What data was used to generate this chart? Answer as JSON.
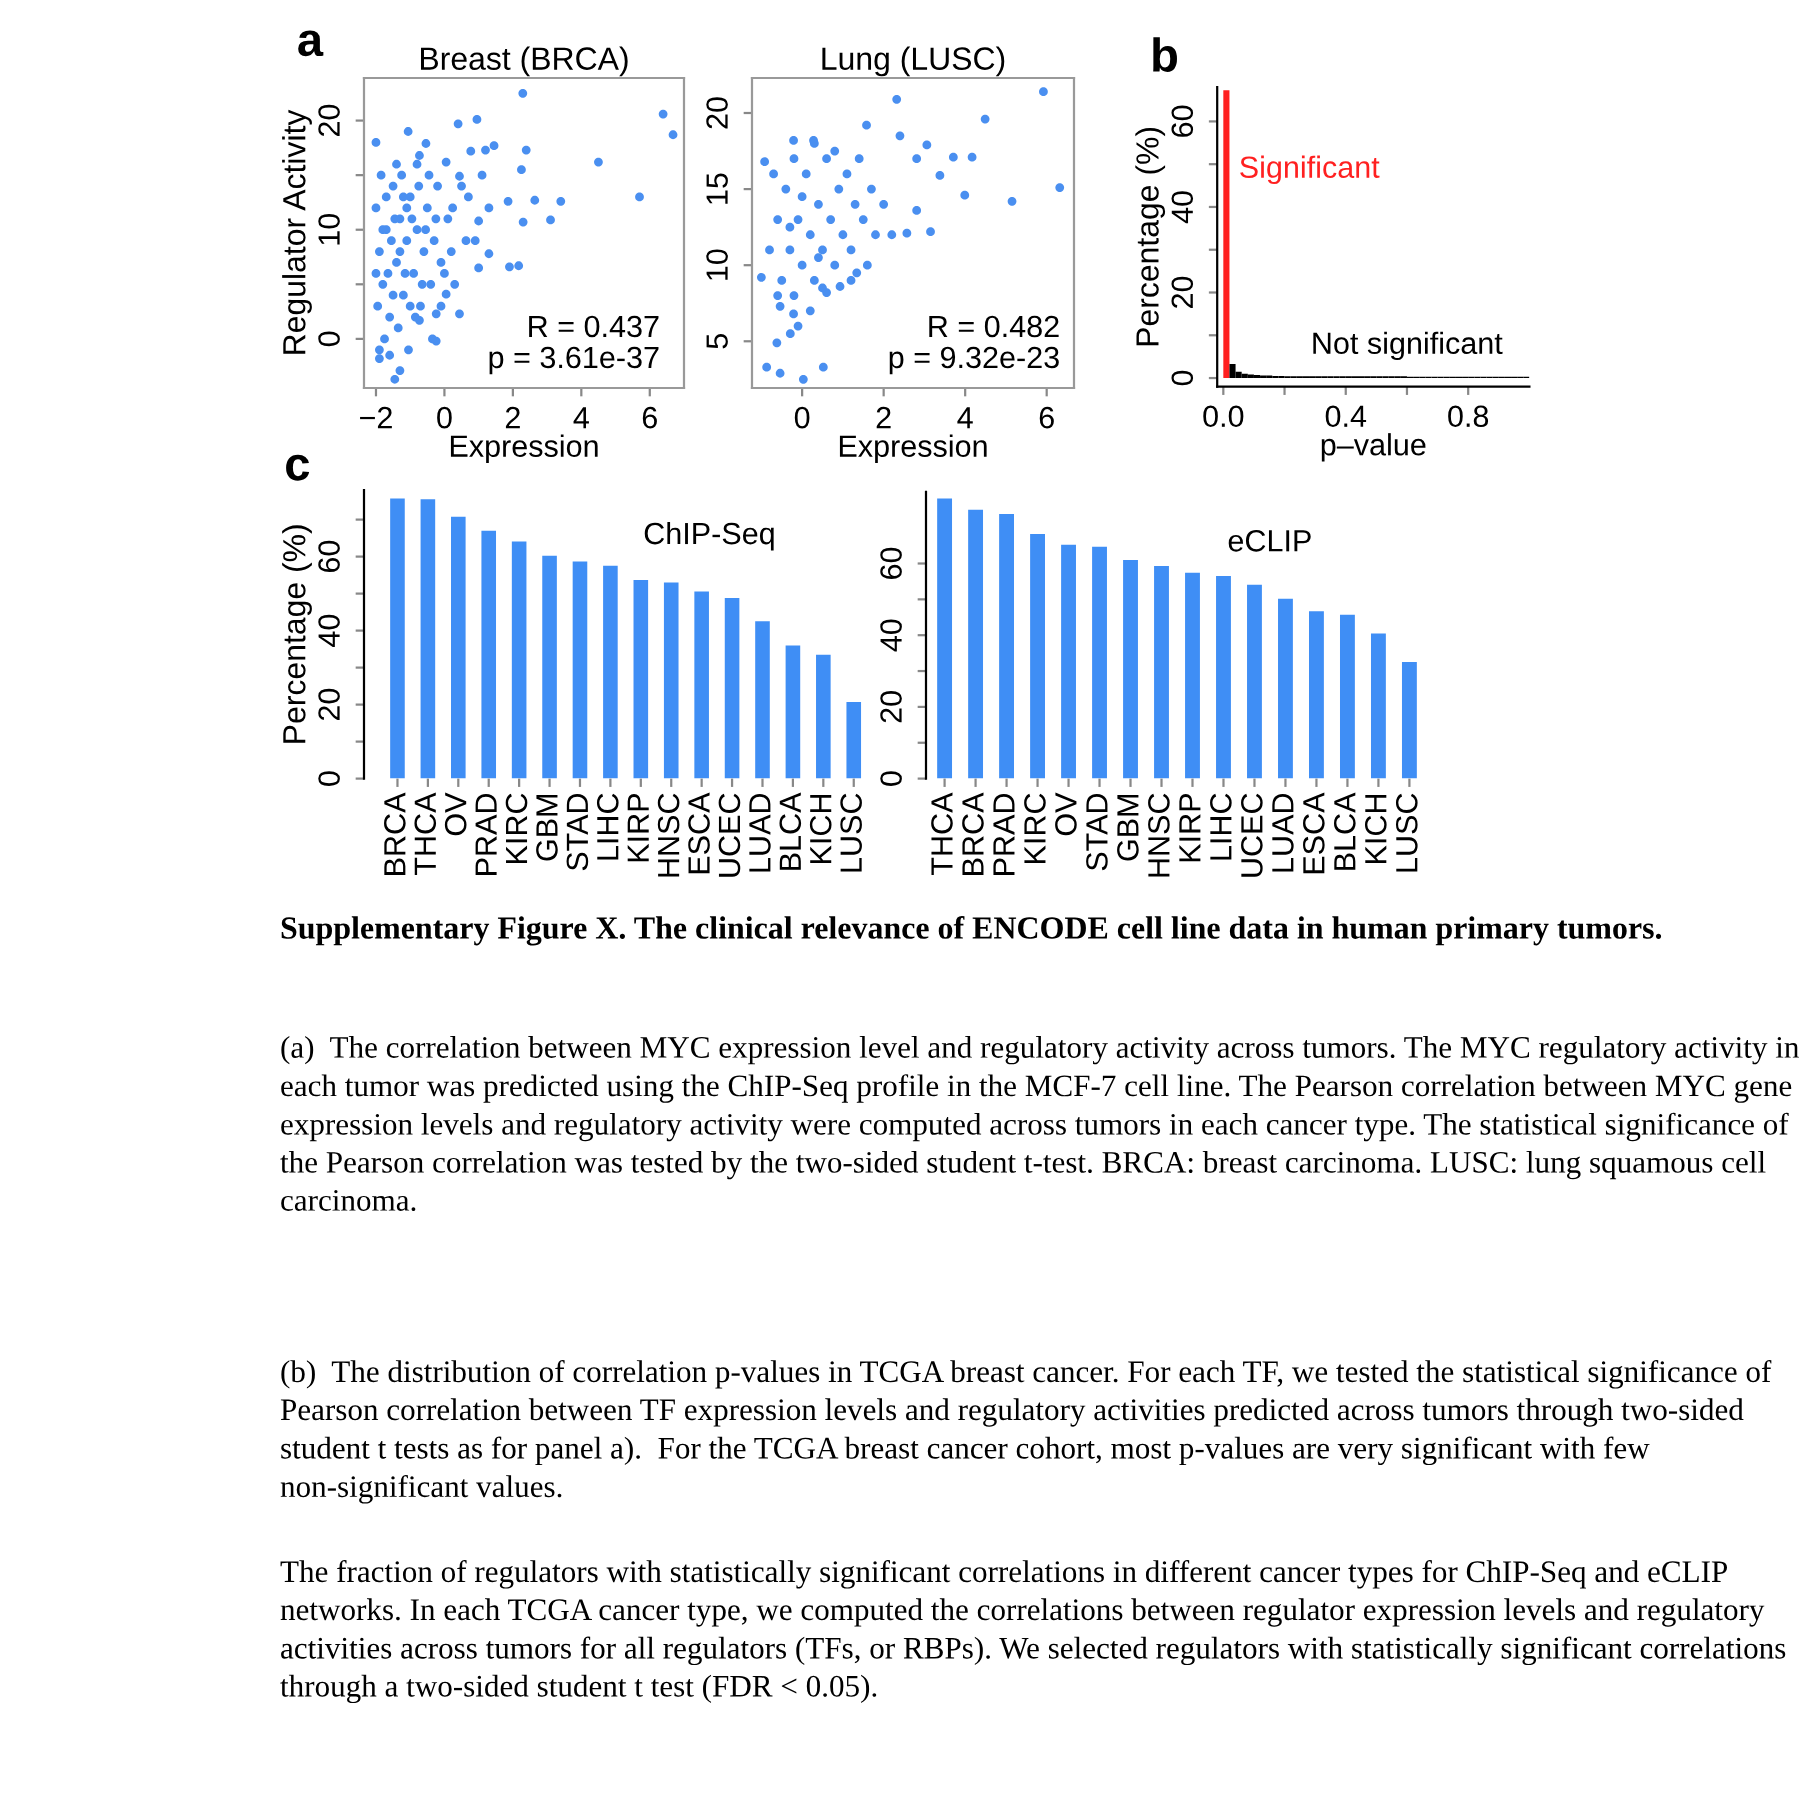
{
  "chart_data": [
    {
      "type": "scatter",
      "title": "Breast (BRCA)",
      "xlabel": "Expression",
      "ylabel": "Regulator Activity",
      "annotations": [
        "a",
        "R = 0.437",
        "p = 3.61e-37"
      ],
      "color": "#4a8ff0",
      "marker": "circle",
      "grid": false,
      "x": [
        2.29,
        6.39,
        6.68,
        4.5,
        5.7,
        0.4,
        0.95,
        -1.06,
        -2,
        2.39,
        2.25,
        2.64,
        3.4,
        3.1,
        2.3,
        1.9,
        2.17,
        1.0,
        -0.24,
        -1.45,
        -1.3,
        -1.9,
        1.86,
        1.45,
        1.2,
        0.77,
        0.44,
        0.05,
        -0.54,
        -0.73,
        0.24,
        1.0,
        0.63,
        -0.24,
        -0.73,
        0.44,
        0.05,
        1.3,
        -2,
        -1.9,
        -1.8,
        -1.7,
        -1.6,
        -1.5,
        -1.4,
        -1.3,
        -1.2,
        -1.1,
        -1.0,
        -0.9,
        -0.8,
        -0.7,
        -0.6,
        -0.5,
        -0.4,
        -0.3,
        -0.2,
        -0.1,
        -1.95,
        -1.85,
        -1.75,
        -1.65,
        -1.55,
        -1.45,
        -1.35,
        -1.25,
        -1.15,
        -1.05,
        -0.95,
        -0.85,
        -0.75,
        -0.65,
        -0.55,
        -0.45,
        -0.35,
        -0.25,
        -1.9,
        -1.6,
        -1.7,
        -1.5,
        -1.2,
        -1.0,
        -0.8,
        -1.4,
        -2,
        -1.8,
        -1.3,
        -1.1,
        0.1,
        0.2,
        0.5,
        0.7,
        0.9,
        1.1,
        1.3,
        0.0,
        -0.1,
        0.3
      ],
      "values": [
        22.5,
        20.6,
        18.7,
        16.2,
        13.0,
        19.7,
        20.1,
        19.0,
        18.0,
        17.3,
        15.5,
        12.7,
        12.6,
        10.9,
        10.7,
        6.6,
        6.7,
        6.5,
        -0.2,
        -3.7,
        -2.9,
        -1.8,
        12.6,
        17.7,
        17.3,
        17.2,
        14.9,
        16.2,
        17.9,
        16.8,
        12.0,
        10.8,
        9.0,
        2.3,
        1.7,
        2.3,
        4.1,
        7.8,
        12,
        8,
        5,
        10,
        2,
        14,
        7,
        11,
        4,
        9,
        13,
        6,
        10,
        3,
        8,
        12,
        5,
        9,
        14,
        7,
        3,
        15,
        0,
        6,
        9,
        11,
        1,
        15,
        6,
        -1,
        11,
        2,
        14,
        5,
        10,
        15,
        0,
        11,
        -1,
        -1.5,
        13,
        4,
        13,
        3,
        16,
        16,
        6,
        10,
        8,
        12,
        11,
        8,
        14,
        13,
        9,
        15,
        12,
        6,
        3,
        5
      ],
      "xlim": [
        -2.35,
        7.0
      ],
      "ylim": [
        -4.5,
        23.9
      ],
      "xticks": [
        {
          "value": -2,
          "label": "−2"
        },
        0,
        2,
        4,
        6
      ],
      "yticks": [
        0,
        {
          "value": 5,
          "label": null
        },
        10,
        {
          "value": 15,
          "label": null
        },
        20
      ]
    },
    {
      "type": "scatter",
      "title": "Lung (LUSC)",
      "xlabel": "Expression",
      "annotations": [
        "R = 0.482",
        "p = 9.32e-23"
      ],
      "color": "#4a8ff0",
      "marker": "circle",
      "grid": false,
      "x": [
        5.92,
        2.32,
        4.49,
        6.32,
        5.15,
        3.99,
        4.17,
        3.71,
        3.06,
        2.4,
        2.81,
        3.38,
        3.15,
        2.57,
        2.81,
        -0.21,
        0.28,
        1.58,
        -0.92,
        -1.0,
        -0.87,
        -0.54,
        0.03,
        0.52,
        -0.29,
        -0.62,
        -0.21,
        -0.54,
        1.34,
        0.6,
        0.93,
        -0.8,
        -0.6,
        -0.5,
        -0.4,
        -0.3,
        -0.2,
        -0.1,
        0.0,
        0.1,
        0.2,
        0.3,
        0.4,
        0.5,
        0.6,
        0.7,
        0.8,
        0.9,
        1.0,
        1.1,
        1.2,
        1.3,
        1.4,
        1.5,
        1.7,
        1.8,
        2.0,
        -0.7,
        -0.2,
        0.3,
        0.8,
        -0.6,
        -0.1,
        0.2,
        0.5,
        1.6,
        2.2,
        0.0,
        -0.3,
        0.4,
        1.2
      ],
      "values": [
        21.4,
        20.9,
        19.6,
        15.1,
        14.2,
        14.6,
        17.1,
        17.1,
        17.9,
        18.5,
        17.0,
        15.9,
        12.2,
        12.1,
        13.6,
        18.2,
        18.2,
        19.2,
        16.8,
        9.2,
        3.3,
        2.9,
        2.5,
        3.3,
        5.5,
        4.9,
        6.8,
        7.3,
        9.5,
        8.2,
        8.6,
        11,
        13,
        9,
        15,
        11,
        8,
        13,
        10,
        16,
        12,
        9,
        14,
        11,
        17,
        13,
        10,
        15,
        12,
        16,
        11,
        14,
        17,
        13,
        15,
        12,
        14,
        16,
        17,
        18,
        17.5,
        8,
        6,
        7,
        8.5,
        10,
        12,
        14.5,
        12.5,
        10.5,
        9
      ],
      "xlim": [
        -1.23,
        6.67
      ],
      "ylim": [
        1.93,
        22.3
      ],
      "xticks": [
        0,
        2,
        4,
        6
      ],
      "yticks": [
        5,
        10,
        15,
        20
      ]
    },
    {
      "type": "histogram",
      "xlabel": "p–value",
      "ylabel": "Percentage (%)",
      "annotations": [
        "b"
      ],
      "grid": false,
      "bins": [
        0,
        0.02,
        0.04,
        0.06,
        0.08,
        0.1,
        0.12,
        0.14,
        0.16,
        0.18,
        0.2,
        0.22,
        0.24,
        0.26,
        0.28,
        0.3,
        0.32,
        0.34,
        0.36,
        0.38,
        0.4,
        0.42,
        0.44,
        0.46,
        0.48,
        0.5,
        0.52,
        0.54,
        0.56,
        0.58,
        0.6,
        0.62,
        0.64,
        0.66,
        0.68,
        0.7,
        0.72,
        0.74,
        0.76,
        0.78,
        0.8,
        0.82,
        0.84,
        0.86,
        0.88,
        0.9,
        0.92,
        0.94,
        0.96,
        0.98,
        1.0
      ],
      "series": [
        {
          "name": "Significant",
          "color": "#ff2020",
          "values": [
            67.3,
            null,
            null,
            null,
            null,
            null,
            null,
            null,
            null,
            null,
            null,
            null,
            null,
            null,
            null,
            null,
            null,
            null,
            null,
            null,
            null,
            null,
            null,
            null,
            null,
            null,
            null,
            null,
            null,
            null,
            null,
            null,
            null,
            null,
            null,
            null,
            null,
            null,
            null,
            null,
            null,
            null,
            null,
            null,
            null,
            null,
            null,
            null,
            null,
            null
          ]
        },
        {
          "name": "Not significant",
          "color": "#000000",
          "values": [
            null,
            3.3,
            1.5,
            1.0,
            0.8,
            0.7,
            0.6,
            0.6,
            0.5,
            0.5,
            0.4,
            0.4,
            0.4,
            0.4,
            0.4,
            0.4,
            0.4,
            0.4,
            0.4,
            0.4,
            0.4,
            0.4,
            0.4,
            0.4,
            0.4,
            0.4,
            0.4,
            0.4,
            0.4,
            0.4,
            0.3,
            0.3,
            0.3,
            0.3,
            0.3,
            0.3,
            0.3,
            0.3,
            0.3,
            0.3,
            0.3,
            0.3,
            0.3,
            0.3,
            0.3,
            0.3,
            0.3,
            0.3,
            0.3,
            0.3
          ]
        }
      ],
      "xlim": [
        -0.02,
        1.0
      ],
      "ylim": [
        -2,
        68
      ],
      "xticks": [
        {
          "value": 0,
          "label": "0.0"
        },
        {
          "value": 0.2,
          "label": null
        },
        0.4,
        {
          "value": 0.6,
          "label": null
        },
        0.8
      ],
      "yticks": [
        0,
        {
          "value": 10,
          "label": null
        },
        20,
        {
          "value": 30,
          "label": null
        },
        40,
        {
          "value": 50,
          "label": null
        },
        60
      ]
    },
    {
      "type": "bar",
      "title": "ChIP-Seq",
      "ylabel": "Percentage (%)",
      "annotations": [
        "c"
      ],
      "color": "#3f8ef5",
      "grid": false,
      "categories": [
        "BRCA",
        "THCA",
        "OV",
        "PRAD",
        "KIRC",
        "GBM",
        "STAD",
        "LIHC",
        "KIRP",
        "HNSC",
        "ESCA",
        "UCEC",
        "LUAD",
        "BLCA",
        "KICH",
        "LUSC"
      ],
      "values": [
        75.7,
        75.5,
        70.8,
        67.0,
        64.1,
        60.2,
        58.7,
        57.5,
        53.7,
        53.0,
        50.6,
        48.8,
        42.5,
        36.0,
        33.5,
        20.7
      ],
      "ylim": [
        0,
        78
      ],
      "yticks": [
        0,
        {
          "value": 10,
          "label": null
        },
        20,
        {
          "value": 30,
          "label": null
        },
        40,
        {
          "value": 50,
          "label": null
        },
        60,
        {
          "value": 70,
          "label": null
        }
      ]
    },
    {
      "type": "bar",
      "title": "eCLIP",
      "color": "#3f8ef5",
      "grid": false,
      "categories": [
        "THCA",
        "BRCA",
        "PRAD",
        "KIRC",
        "OV",
        "STAD",
        "GBM",
        "HNSC",
        "KIRP",
        "LIHC",
        "UCEC",
        "LUAD",
        "ESCA",
        "BLCA",
        "KICH",
        "LUSC"
      ],
      "values": [
        78.1,
        75.0,
        73.8,
        68.2,
        65.2,
        64.7,
        61.0,
        59.3,
        57.4,
        56.5,
        54.1,
        50.2,
        46.7,
        45.7,
        40.5,
        32.5
      ],
      "ylim": [
        0,
        80
      ],
      "yticks": [
        0,
        {
          "value": 10,
          "label": null
        },
        20,
        {
          "value": 30,
          "label": null
        },
        40,
        {
          "value": 50,
          "label": null
        },
        60
      ]
    },
    {
      "type": "other",
      "title": "Supplementary Figure X. The clinical relevance of ENCODE cell line data in human primary tumors.",
      "annotations": [
        "(a)  The correlation between MYC expression level and regulatory activity across tumors. The MYC regulatory activity in each tumor was predicted using the ChIP-Seq profile in the MCF-7 cell line. The Pearson correlation between MYC gene expression levels and regulatory activity were computed across tumors in each cancer type. The statistical significance of the Pearson correlation was tested by the two-sided student t-test. BRCA: breast carcinoma. LUSC: lung squamous cell carcinoma.",
        "(b)  The distribution of correlation p-values in TCGA breast cancer. For each TF, we tested the statistical significance of Pearson correlation between TF expression levels and regulatory activities predicted across tumors through two-sided student t tests as for panel a).  For the TCGA breast cancer cohort, most p-values are very significant with few non-significant values.",
        "The fraction of regulators with statistically significant correlations in different cancer types for ChIP-Seq and eCLIP networks. In each TCGA cancer type, we computed the correlations between regulator expression levels and regulatory activities across tumors for all regulators (TFs, or RBPs). We selected regulators with statistically significant correlations through a two-sided student t test (FDR < 0.05)."
      ]
    }
  ]
}
